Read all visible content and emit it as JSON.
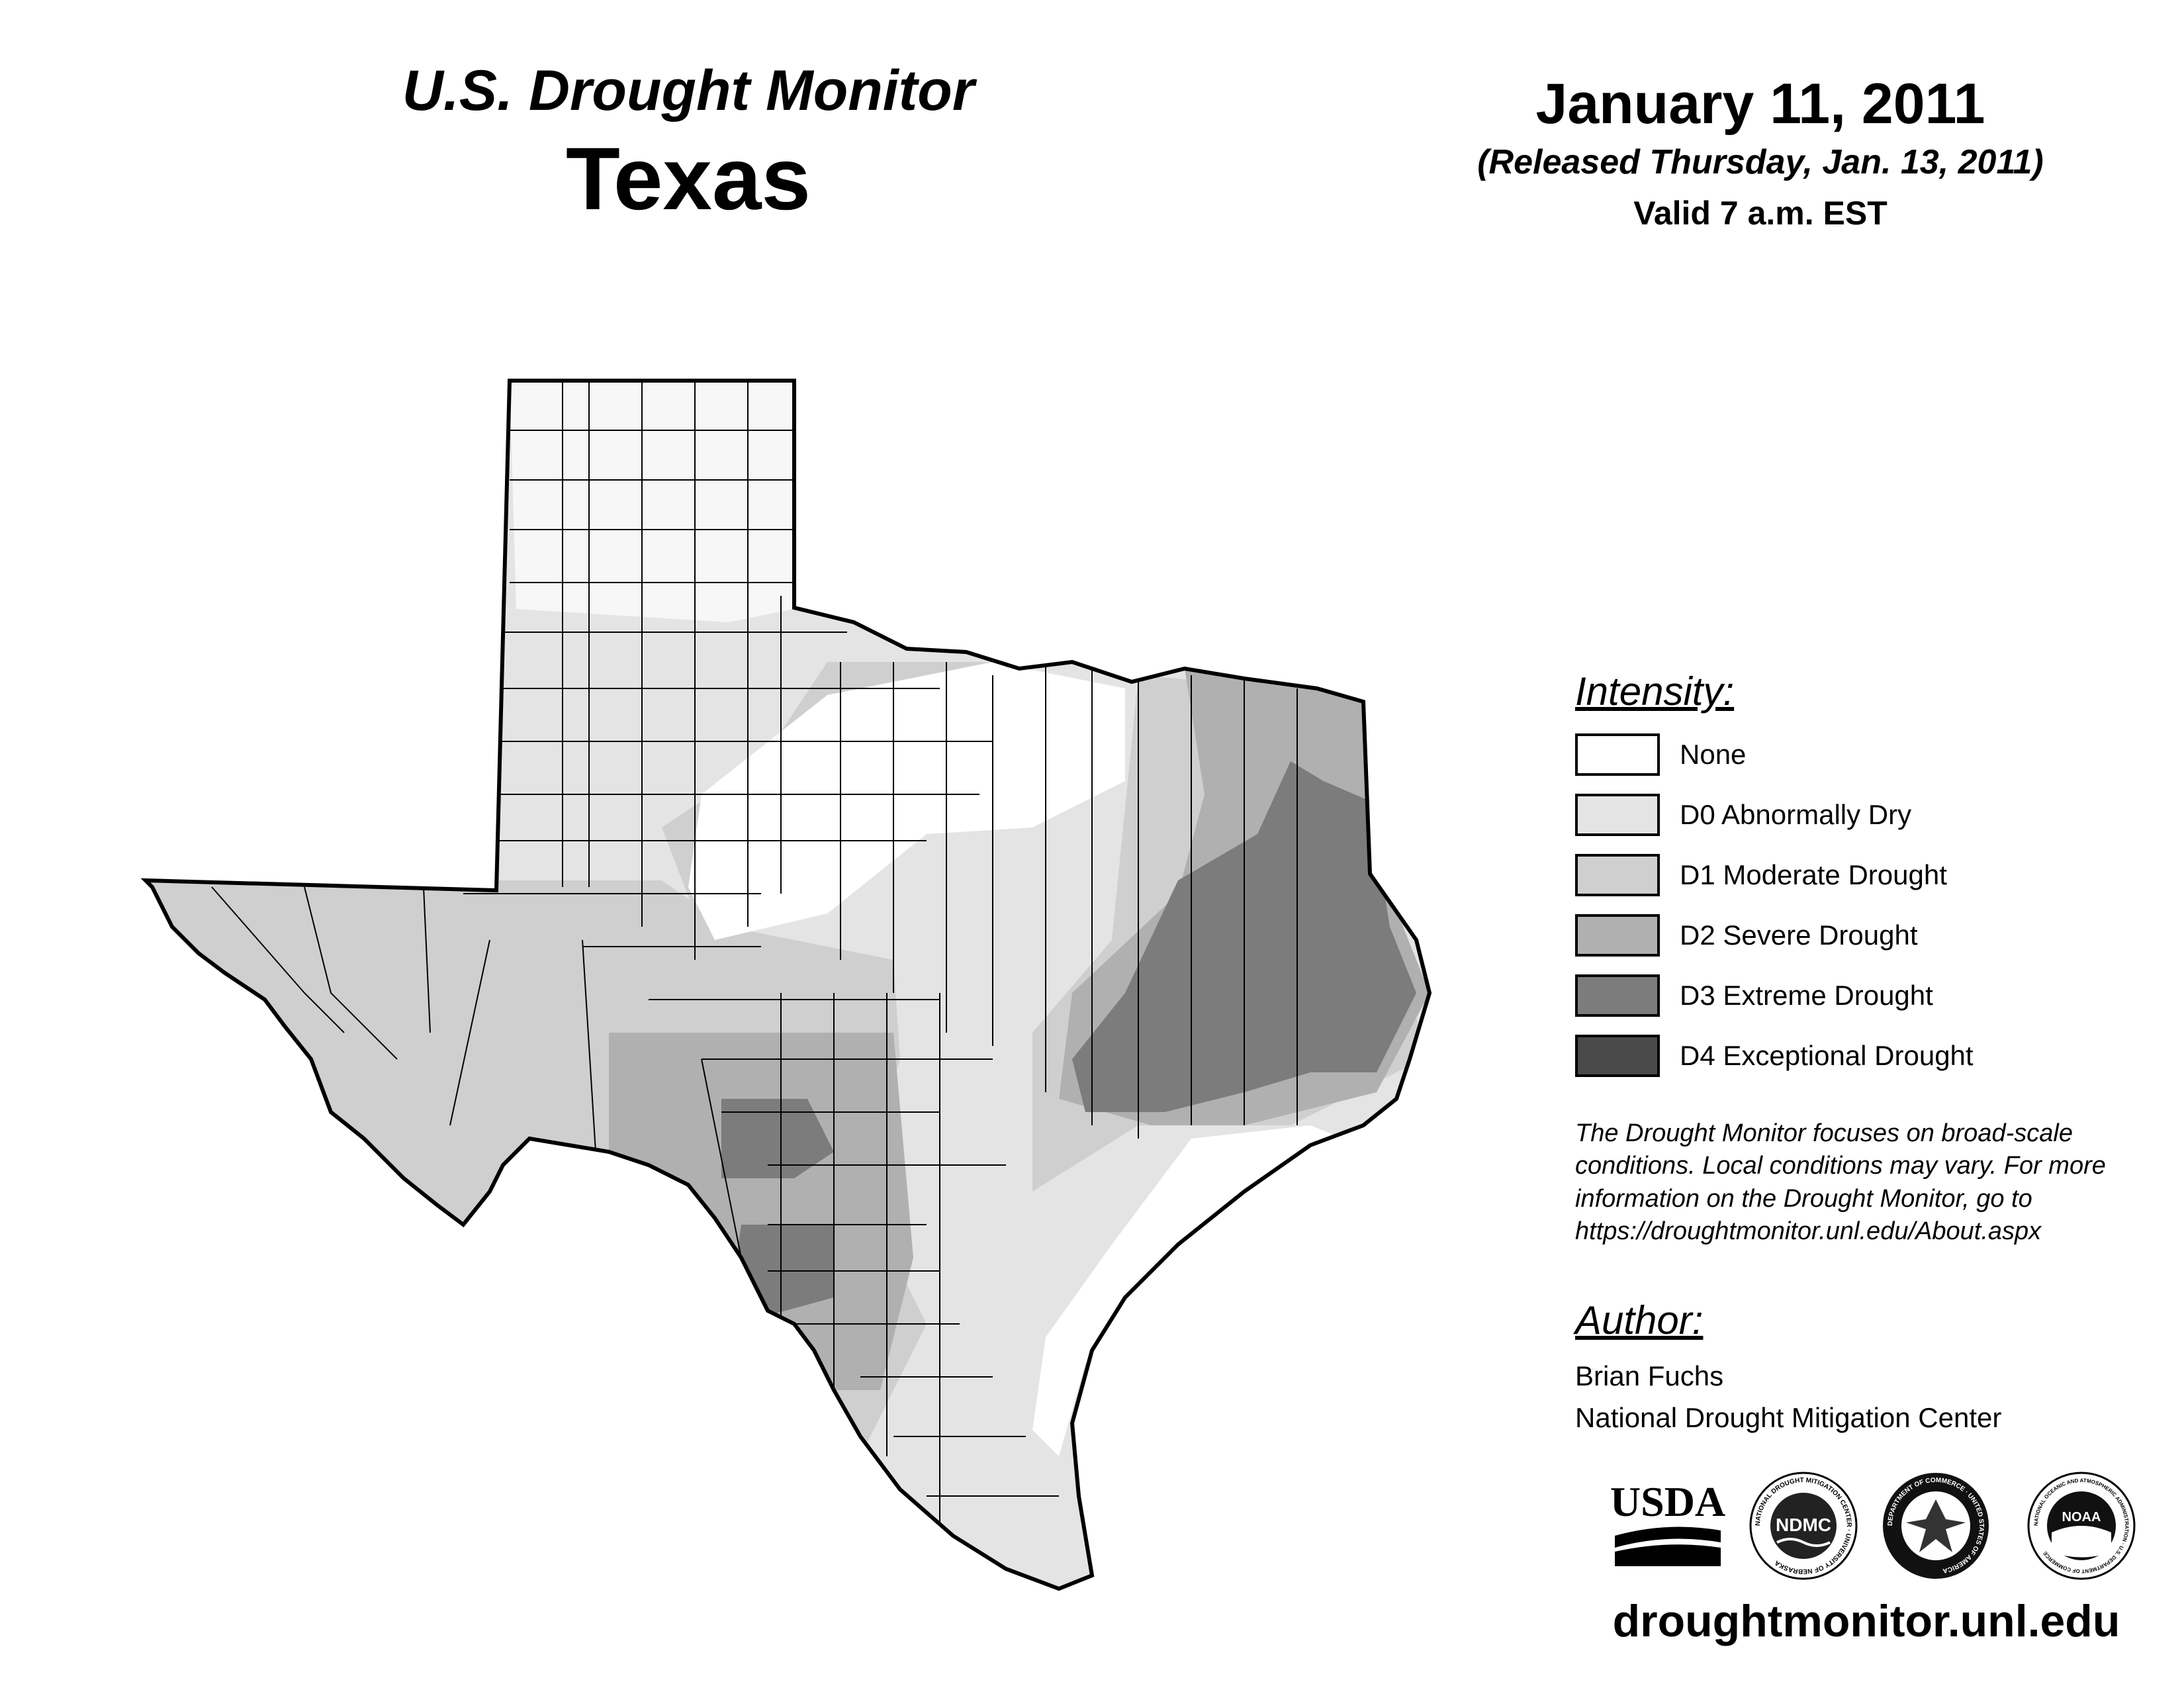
{
  "header": {
    "title": "U.S. Drought Monitor",
    "state": "Texas",
    "date": "January 11, 2011",
    "released": "(Released Thursday, Jan. 13, 2011)",
    "valid": "Valid 7 a.m. EST"
  },
  "legend": {
    "heading": "Intensity:",
    "items": [
      {
        "label": "None",
        "color": "#ffffff"
      },
      {
        "label": "D0 Abnormally Dry",
        "color": "#e4e4e4"
      },
      {
        "label": "D1 Moderate Drought",
        "color": "#cfcfcf"
      },
      {
        "label": "D2 Severe Drought",
        "color": "#b0b0b0"
      },
      {
        "label": "D3 Extreme Drought",
        "color": "#7c7c7c"
      },
      {
        "label": "D4 Exceptional Drought",
        "color": "#4a4a4a"
      }
    ]
  },
  "disclaimer": {
    "line1": "The Drought Monitor focuses on broad-scale",
    "line2": "conditions. Local conditions may vary. For more",
    "line3": "information on the Drought Monitor, go to",
    "line4": "https://droughtmonitor.unl.edu/About.aspx"
  },
  "author": {
    "heading": "Author:",
    "name": "Brian Fuchs",
    "org": "National Drought Mitigation Center"
  },
  "logos": {
    "usda": "USDA",
    "ndmc": "NDMC",
    "ndmc_ring": "NATIONAL DROUGHT MITIGATION CENTER · UNIVERSITY OF NEBRASKA",
    "commerce_ring": "DEPARTMENT OF COMMERCE · UNITED STATES OF AMERICA",
    "noaa": "NOAA",
    "noaa_ring": "NATIONAL OCEANIC AND ATMOSPHERIC ADMINISTRATION · U.S. DEPARTMENT OF COMMERCE"
  },
  "website": "droughtmonitor.unl.edu"
}
